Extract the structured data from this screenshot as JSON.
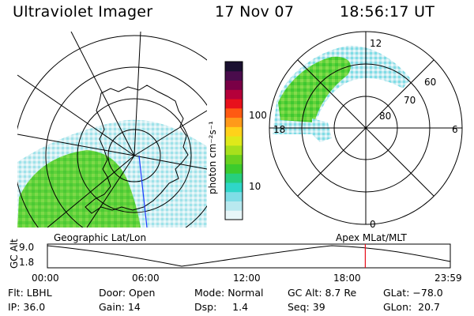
{
  "header": {
    "instrument": "Ultraviolet Imager",
    "date": "17 Nov 07",
    "time": "18:56:17 UT"
  },
  "colorbar": {
    "unit_label": "photon cm⁻²s⁻¹",
    "ticks": [
      "100",
      "10"
    ],
    "colors": [
      "#e8f6f8",
      "#b9e9ef",
      "#7fdde6",
      "#2fd6c8",
      "#27cf7e",
      "#3ccb2d",
      "#6ad11f",
      "#a8e01c",
      "#dfe91a",
      "#ffd21a",
      "#ff9a1a",
      "#ff5a12",
      "#e8101c",
      "#b5003a",
      "#7a0046",
      "#4a0c4c",
      "#1a1030"
    ]
  },
  "left_map": {
    "projection_label": "Geographic Lat/Lon"
  },
  "right_map": {
    "projection_label": "Apex MLat/MLT",
    "lat_labels": [
      "80",
      "70",
      "60"
    ],
    "mlt_labels": [
      "12",
      "18",
      "6",
      "0"
    ]
  },
  "timeline": {
    "ylabel": "GC Alt",
    "ymax": "9.0",
    "ymin": "1.8",
    "time_ticks": [
      "00:00",
      "06:00",
      "12:00",
      "18:00",
      "23:59"
    ],
    "current_time_fraction": 0.789
  },
  "status": {
    "flt": "Flt: LBHL",
    "door": "Door: Open",
    "mode": "Mode: Normal",
    "gcalt": "GC Alt: 8.7 Re",
    "glat": "GLat: −78.0",
    "ip": "IP: 36.0",
    "gain": "Gain: 14",
    "dsp": "Dsp:     1.4",
    "seq": "Seq: 39",
    "glon": "GLon:  20.7"
  }
}
